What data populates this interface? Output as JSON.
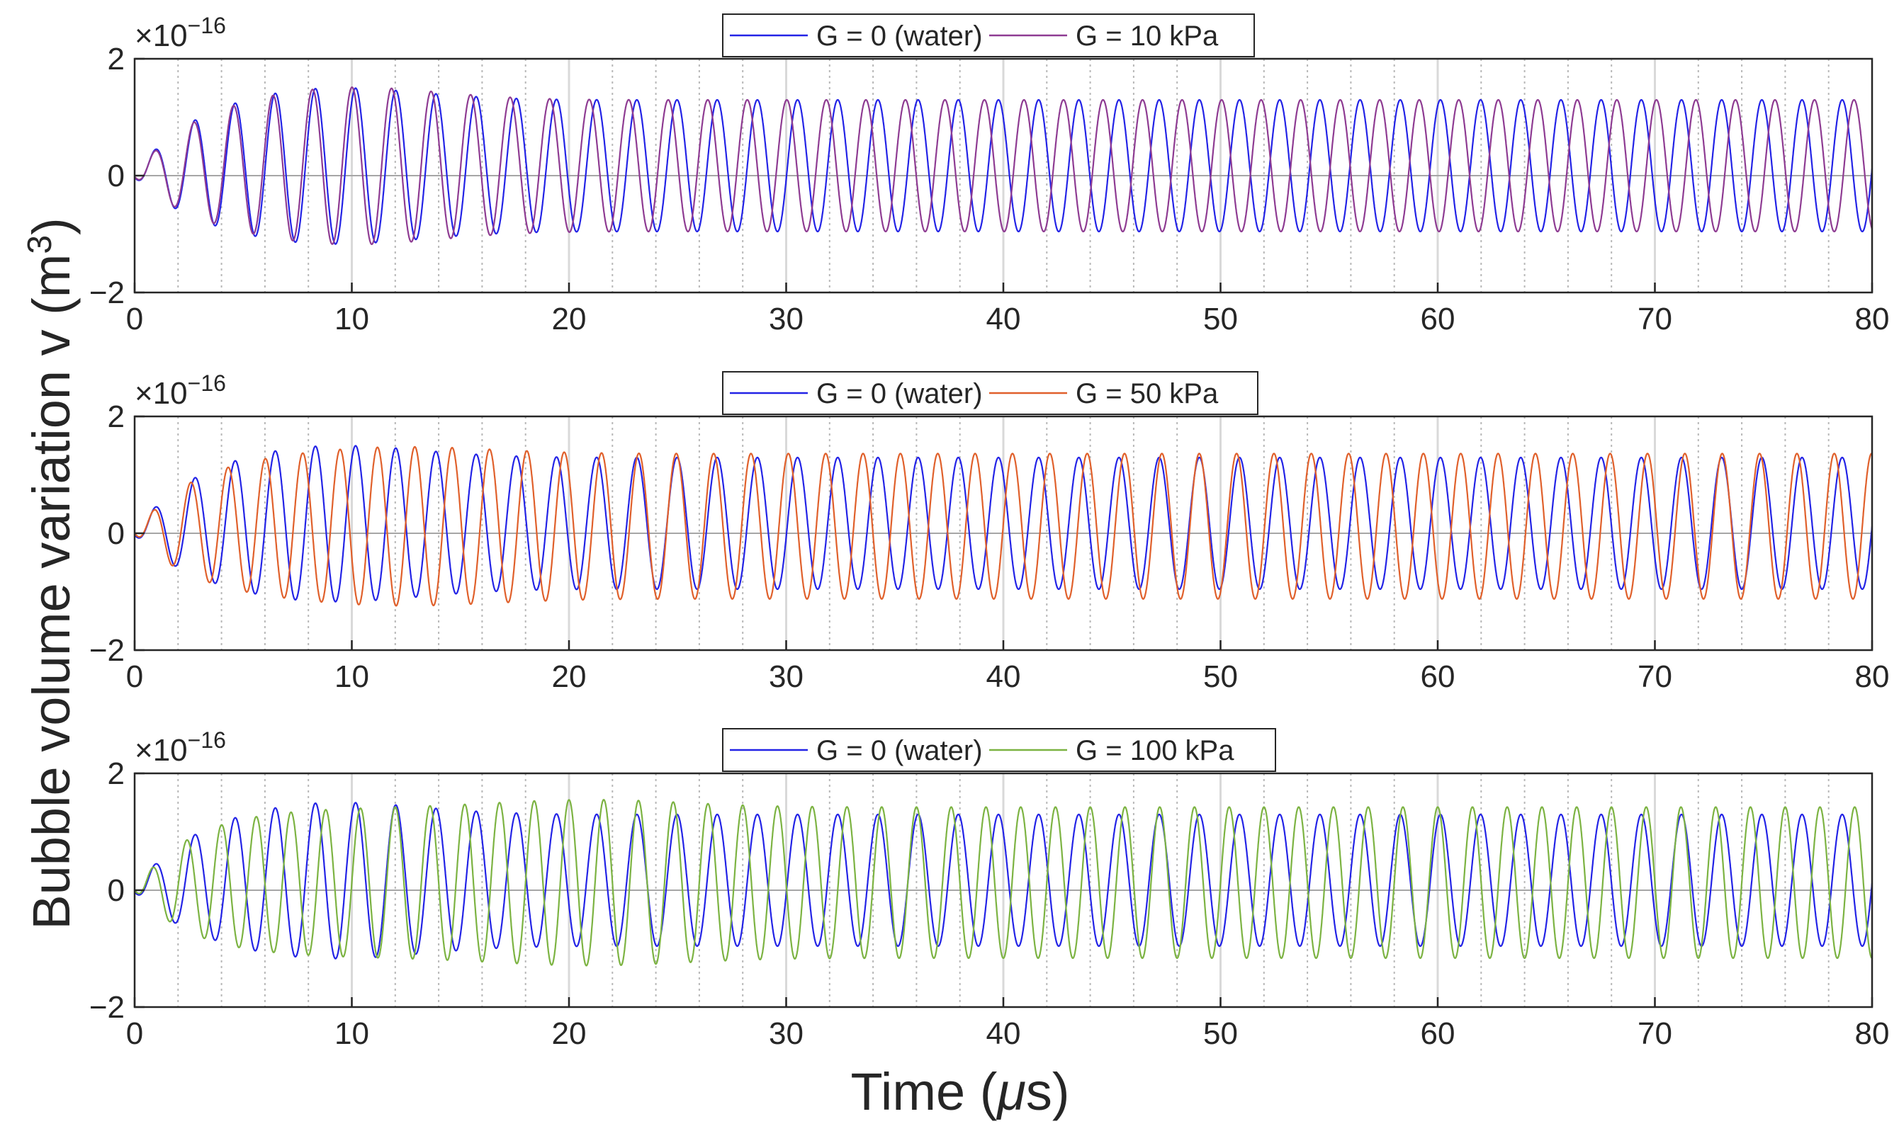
{
  "figure": {
    "ylabel": "Bubble volume variation v (m",
    "ylabel_sup": "3",
    "ylabel_close": ")",
    "xlabel_pre": "Time (",
    "xlabel_mu": "μ",
    "xlabel_post": "s)"
  },
  "colors": {
    "water": "#2323e6",
    "g10": "#8e3b92",
    "g50": "#e0602b",
    "g100": "#7cb342",
    "axis": "#262626",
    "grid_major": "#d9d9d9",
    "grid_minor": "#b8b8b8",
    "zero_line": "#a6a6a6"
  },
  "chart_data": [
    {
      "type": "line",
      "title": "",
      "xlabel": "Time (μs)",
      "ylabel": "Bubble volume variation v (m^3)",
      "x_unit": "μs",
      "y_scale_exponent_label": "×10",
      "y_scale_exponent": "−16",
      "xlim": [
        0,
        80
      ],
      "ylim": [
        -2,
        2
      ],
      "xticks": [
        "0",
        "10",
        "20",
        "30",
        "40",
        "50",
        "60",
        "70",
        "80"
      ],
      "yticks": [
        "−2",
        "0",
        "2"
      ],
      "minor_gridlines_every": 2,
      "legend": [
        "G = 0 (water)",
        "G = 10 kPa"
      ],
      "legend_location": "top-center",
      "series": [
        {
          "name": "G = 0 (water)",
          "color_key": "water",
          "period_us": 1.85,
          "steady_amplitude": 1.15,
          "steady_offset": 0.17,
          "peak_amplitude": 1.4,
          "peak_time_us": 8.5
        },
        {
          "name": "G = 10 kPa",
          "color_key": "g10",
          "period_us": 1.82,
          "steady_amplitude": 1.15,
          "steady_offset": 0.17,
          "peak_amplitude": 1.4,
          "peak_time_us": 9.5
        }
      ]
    },
    {
      "type": "line",
      "title": "",
      "xlabel": "Time (μs)",
      "ylabel": "Bubble volume variation v (m^3)",
      "x_unit": "μs",
      "y_scale_exponent_label": "×10",
      "y_scale_exponent": "−16",
      "xlim": [
        0,
        80
      ],
      "ylim": [
        -2,
        2
      ],
      "xticks": [
        "0",
        "10",
        "20",
        "30",
        "40",
        "50",
        "60",
        "70",
        "80"
      ],
      "yticks": [
        "−2",
        "0",
        "2"
      ],
      "minor_gridlines_every": 2,
      "legend": [
        "G = 0 (water)",
        "G = 50 kPa"
      ],
      "legend_location": "top-center",
      "series": [
        {
          "name": "G = 0 (water)",
          "color_key": "water",
          "period_us": 1.85,
          "steady_amplitude": 1.15,
          "steady_offset": 0.17,
          "peak_amplitude": 1.4,
          "peak_time_us": 8.5
        },
        {
          "name": "G = 50 kPa",
          "color_key": "g50",
          "period_us": 1.72,
          "steady_amplitude": 1.27,
          "steady_offset": 0.12,
          "peak_amplitude": 1.4,
          "peak_time_us": 12.0
        }
      ]
    },
    {
      "type": "line",
      "title": "",
      "xlabel": "Time (μs)",
      "ylabel": "Bubble volume variation v (m^3)",
      "x_unit": "μs",
      "y_scale_exponent_label": "×10",
      "y_scale_exponent": "−16",
      "xlim": [
        0,
        80
      ],
      "ylim": [
        -2,
        2
      ],
      "xticks": [
        "0",
        "10",
        "20",
        "30",
        "40",
        "50",
        "60",
        "70",
        "80"
      ],
      "yticks": [
        "−2",
        "0",
        "2"
      ],
      "minor_gridlines_every": 2,
      "legend": [
        "G = 0 (water)",
        "G = 100 kPa"
      ],
      "legend_location": "top-center",
      "series": [
        {
          "name": "G = 0 (water)",
          "color_key": "water",
          "period_us": 1.85,
          "steady_amplitude": 1.15,
          "steady_offset": 0.17,
          "peak_amplitude": 1.4,
          "peak_time_us": 8.5
        },
        {
          "name": "G = 100 kPa",
          "color_key": "g100",
          "period_us": 1.6,
          "steady_amplitude": 1.32,
          "steady_offset": 0.13,
          "peak_amplitude": 1.45,
          "peak_time_us": 21.0
        }
      ]
    }
  ]
}
